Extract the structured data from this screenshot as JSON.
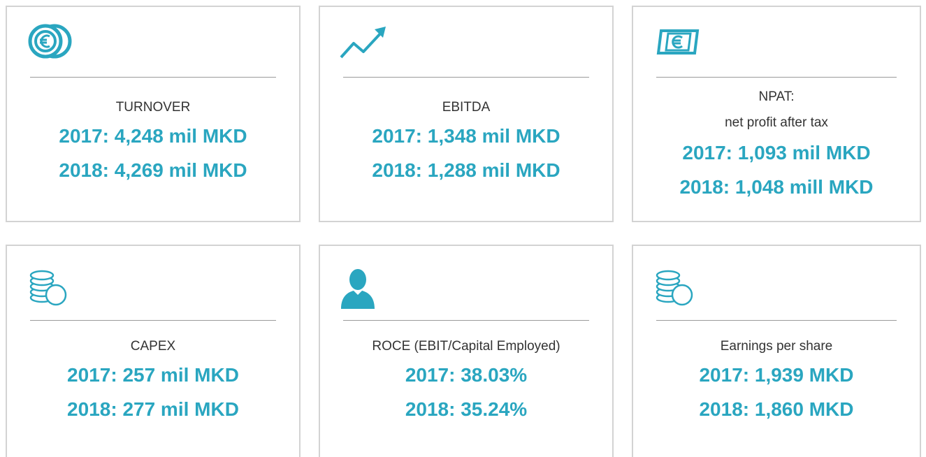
{
  "cards": [
    {
      "label": [
        "TURNOVER"
      ],
      "values": [
        "2017: 4,248 mil MKD",
        "2018: 4,269 mil MKD"
      ]
    },
    {
      "label": [
        "EBITDA"
      ],
      "values": [
        "2017: 1,348 mil MKD",
        "2018: 1,288 mil MKD"
      ]
    },
    {
      "label": [
        "NPAT:",
        "net profit after tax"
      ],
      "values": [
        "2017: 1,093 mil MKD",
        "2018: 1,048 mill MKD"
      ]
    },
    {
      "label": [
        "CAPEX"
      ],
      "values": [
        "2017: 257 mil MKD",
        "2018: 277 mil MKD"
      ]
    },
    {
      "label": [
        "ROCE (EBIT/Capital Employed)"
      ],
      "values": [
        "2017: 38.03%",
        "2018: 35.24%"
      ]
    },
    {
      "label": [
        "Earnings per share"
      ],
      "values": [
        "2017: 1,939 MKD",
        "2018: 1,860 MKD"
      ]
    }
  ]
}
